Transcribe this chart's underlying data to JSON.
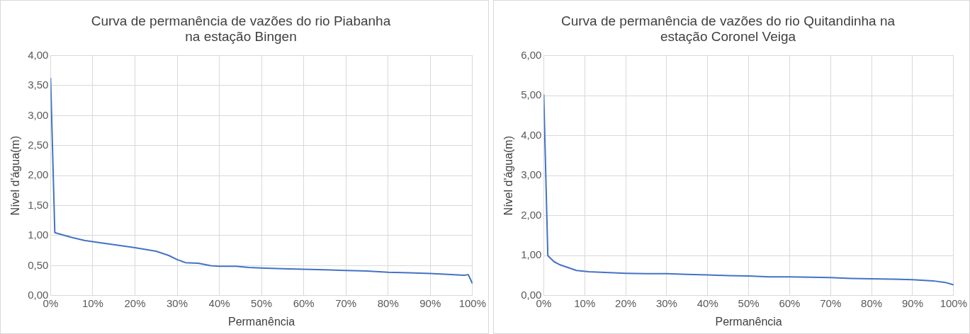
{
  "chart_data": [
    {
      "type": "line",
      "title": "Curva de permanência de vazões do rio Piabanha\nna estação Bingen",
      "xlabel": "Permanência",
      "ylabel": "Nível d'água(m)",
      "grid": true,
      "legend": false,
      "marker": "none",
      "xlim": [
        0,
        100
      ],
      "xticks": [
        {
          "value": 0,
          "label": "0%"
        },
        {
          "value": 10,
          "label": "10%"
        },
        {
          "value": 20,
          "label": "20%"
        },
        {
          "value": 30,
          "label": "30%"
        },
        {
          "value": 40,
          "label": "40%"
        },
        {
          "value": 50,
          "label": "50%"
        },
        {
          "value": 60,
          "label": "60%"
        },
        {
          "value": 70,
          "label": "70%"
        },
        {
          "value": 80,
          "label": "80%"
        },
        {
          "value": 90,
          "label": "90%"
        },
        {
          "value": 100,
          "label": "100%"
        }
      ],
      "ylim": [
        0,
        4
      ],
      "yticks": [
        {
          "value": 0,
          "label": "0,00"
        },
        {
          "value": 0.5,
          "label": "0,50"
        },
        {
          "value": 1,
          "label": "1,00"
        },
        {
          "value": 1.5,
          "label": "1,50"
        },
        {
          "value": 2,
          "label": "2,00"
        },
        {
          "value": 2.5,
          "label": "2,50"
        },
        {
          "value": 3,
          "label": "3,00"
        },
        {
          "value": 3.5,
          "label": "3,50"
        },
        {
          "value": 4,
          "label": "4,00"
        }
      ],
      "x": [
        0,
        1,
        2,
        5,
        8,
        12,
        15,
        20,
        25,
        28,
        30,
        32,
        35,
        38,
        40,
        44,
        47,
        50,
        55,
        60,
        65,
        70,
        75,
        80,
        85,
        90,
        95,
        98,
        99,
        100
      ],
      "series": [
        {
          "color": "#4472c4",
          "values": [
            3.63,
            1.05,
            1.03,
            0.97,
            0.92,
            0.88,
            0.85,
            0.8,
            0.74,
            0.67,
            0.6,
            0.55,
            0.54,
            0.5,
            0.49,
            0.49,
            0.47,
            0.46,
            0.45,
            0.44,
            0.43,
            0.42,
            0.41,
            0.39,
            0.38,
            0.37,
            0.35,
            0.34,
            0.35,
            0.2
          ]
        }
      ]
    },
    {
      "type": "line",
      "title": "Curva de permanência de vazões do rio Quitandinha na\nestação Coronel Veiga",
      "xlabel": "Permanência",
      "ylabel": "Nível d'água(m)",
      "grid": true,
      "legend": false,
      "marker": "none",
      "xlim": [
        0,
        100
      ],
      "xticks": [
        {
          "value": 0,
          "label": "0%"
        },
        {
          "value": 10,
          "label": "10%"
        },
        {
          "value": 20,
          "label": "20%"
        },
        {
          "value": 30,
          "label": "30%"
        },
        {
          "value": 40,
          "label": "40%"
        },
        {
          "value": 50,
          "label": "50%"
        },
        {
          "value": 60,
          "label": "60%"
        },
        {
          "value": 70,
          "label": "70%"
        },
        {
          "value": 80,
          "label": "80%"
        },
        {
          "value": 90,
          "label": "90%"
        },
        {
          "value": 100,
          "label": "100%"
        }
      ],
      "ylim": [
        0,
        6
      ],
      "yticks": [
        {
          "value": 0,
          "label": "0,00"
        },
        {
          "value": 1,
          "label": "1,00"
        },
        {
          "value": 2,
          "label": "2,00"
        },
        {
          "value": 3,
          "label": "3,00"
        },
        {
          "value": 4,
          "label": "4,00"
        },
        {
          "value": 5,
          "label": "5,00"
        },
        {
          "value": 6,
          "label": "6,00"
        }
      ],
      "x": [
        0,
        1,
        2.5,
        4,
        6,
        8,
        11,
        15,
        20,
        25,
        30,
        35,
        40,
        45,
        50,
        55,
        60,
        65,
        70,
        75,
        80,
        85,
        90,
        95,
        98,
        100
      ],
      "series": [
        {
          "color": "#4472c4",
          "values": [
            5.03,
            1.0,
            0.85,
            0.77,
            0.7,
            0.63,
            0.6,
            0.58,
            0.56,
            0.55,
            0.55,
            0.53,
            0.52,
            0.5,
            0.49,
            0.47,
            0.47,
            0.46,
            0.45,
            0.43,
            0.42,
            0.41,
            0.4,
            0.37,
            0.33,
            0.27
          ]
        }
      ]
    }
  ]
}
